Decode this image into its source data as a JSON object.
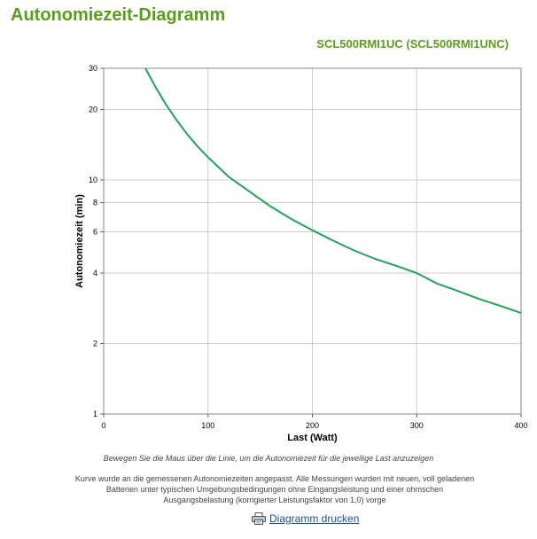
{
  "header": {
    "title": "Autonomiezeit-Diagramm",
    "model": "SCL500RMI1UC (SCL500RMI1UNC)"
  },
  "chart_data": {
    "type": "line",
    "xlabel": "Last (Watt)",
    "ylabel": "Autonomiezeit (min)",
    "xlim": [
      0,
      400
    ],
    "ylim": [
      1,
      30
    ],
    "y_scale": "log",
    "grid": true,
    "x_ticks": [
      "0",
      "100",
      "200",
      "300",
      "400"
    ],
    "y_ticks": [
      "1",
      "2",
      "4",
      "6",
      "8",
      "10",
      "20",
      "30"
    ],
    "series": [
      {
        "color": "#22a35a",
        "x": [
          40,
          50,
          60,
          70,
          80,
          90,
          100,
          120,
          140,
          160,
          180,
          200,
          220,
          240,
          260,
          280,
          300,
          320,
          340,
          360,
          380,
          400
        ],
        "y": [
          30,
          24.8,
          20.9,
          18.0,
          15.7,
          13.9,
          12.5,
          10.3,
          8.9,
          7.7,
          6.8,
          6.1,
          5.5,
          5.0,
          4.6,
          4.3,
          4.0,
          3.6,
          3.35,
          3.1,
          2.9,
          2.7
        ]
      }
    ]
  },
  "footer": {
    "hint": "Bewegen Sie die Maus über die Linie, um die Autonomiezeit für die jeweilige Last anzuzeigen",
    "note": "Kurve wurde an die gemessenen Autonomiezeiten angepasst. Alle Messungen wurden mit neuen, voll geladenen Batterien unter typischen Umgebungsbedingungen ohne Eingangsleistung und einer ohmschen Ausgangsbelastung (korrigierter Leistungsfaktor von 1,0) vorge",
    "print_label": "Diagramm drucken",
    "print_icon": "printer-icon"
  }
}
